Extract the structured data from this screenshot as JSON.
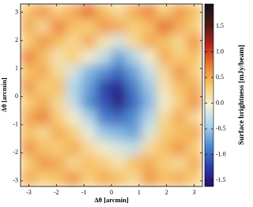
{
  "chart_data": {
    "type": "heatmap",
    "xlabel": "Δθ [arcmin]",
    "ylabel": "Δθ [arcmin]",
    "colorbar_label": "Surface brightness [mJy/beam]",
    "xlim": [
      -3.3,
      3.3
    ],
    "ylim": [
      -3.2,
      3.3
    ],
    "xticks": [
      -3,
      -2,
      -1,
      0,
      1,
      2,
      3
    ],
    "yticks": [
      -3,
      -2,
      -1,
      0,
      1,
      2,
      3
    ],
    "clim": [
      -1.62,
      1.93
    ],
    "cticks": [
      -1.5,
      -1.0,
      -0.5,
      0.0,
      0.5,
      1.0,
      1.5
    ],
    "colormap": [
      "#2a0a6e",
      "#2b3fa8",
      "#4c8ad0",
      "#a9d3ec",
      "#f4f0d8",
      "#f7c96b",
      "#ea7a33",
      "#b3241e",
      "#4a1a14",
      "#111111"
    ],
    "values": [
      [
        0.4,
        0.6,
        0.3,
        0.5,
        0.8,
        0.4,
        0.2,
        0.5,
        0.7,
        0.3,
        0.6,
        0.4
      ],
      [
        0.5,
        0.2,
        0.7,
        0.4,
        0.3,
        0.6,
        0.5,
        0.3,
        0.4,
        0.8,
        0.5,
        0.3
      ],
      [
        0.3,
        0.6,
        0.4,
        0.2,
        0.5,
        0.1,
        -0.2,
        0.2,
        0.5,
        0.4,
        0.2,
        0.6
      ],
      [
        0.7,
        0.4,
        0.1,
        0.3,
        0.0,
        -0.3,
        -0.7,
        -0.4,
        0.0,
        0.5,
        0.3,
        0.4
      ],
      [
        0.4,
        0.5,
        0.2,
        -0.2,
        -0.6,
        -0.8,
        -1.0,
        -0.7,
        -0.3,
        0.2,
        0.6,
        0.3
      ],
      [
        0.6,
        0.3,
        0.4,
        -0.4,
        -0.7,
        -1.2,
        -1.4,
        -0.9,
        -0.5,
        0.1,
        0.4,
        0.5
      ],
      [
        0.3,
        0.5,
        0.2,
        -0.3,
        -0.8,
        -1.1,
        -1.5,
        -1.0,
        -0.6,
        0.0,
        0.3,
        0.6
      ],
      [
        0.5,
        0.7,
        0.3,
        0.0,
        -0.4,
        -0.9,
        -1.0,
        -0.8,
        -0.4,
        0.2,
        0.5,
        0.2
      ],
      [
        0.4,
        0.2,
        0.5,
        0.3,
        -0.1,
        -0.5,
        -0.6,
        -0.7,
        -0.2,
        0.3,
        0.4,
        0.5
      ],
      [
        0.6,
        0.4,
        0.3,
        0.5,
        0.2,
        0.0,
        -0.2,
        -0.3,
        0.2,
        0.4,
        0.6,
        0.3
      ],
      [
        0.3,
        0.6,
        0.5,
        0.2,
        0.4,
        0.3,
        0.1,
        0.4,
        0.5,
        0.3,
        0.2,
        0.5
      ],
      [
        0.5,
        0.3,
        0.4,
        0.6,
        0.3,
        0.5,
        0.4,
        0.2,
        0.6,
        0.4,
        0.5,
        0.3
      ]
    ]
  }
}
